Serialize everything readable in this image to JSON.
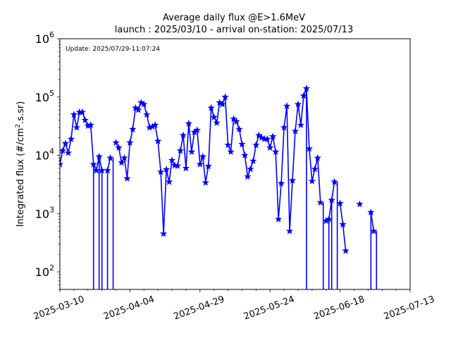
{
  "chart_data": {
    "type": "line",
    "title_line1": "Average daily flux @E>1.6MeV",
    "title_line2": "launch : 2025/03/10 - arrival on-station: 2025/07/13",
    "annotation": "Update: 2025/07/29-11:07:24",
    "ylabel_prefix": "Integrated flux (#/cm",
    "ylabel_sup": "2",
    "ylabel_suffix": ".s.sr)",
    "xlabel": "",
    "yscale": "log",
    "ylim": [
      50,
      1000000
    ],
    "xlim": [
      "2025-03-10",
      "2025-07-13"
    ],
    "x_tick_labels": [
      "2025-03-10",
      "2025-04-04",
      "2025-04-29",
      "2025-05-24",
      "2025-06-18",
      "2025-07-13"
    ],
    "y_tick_labels": [
      {
        "value": 100,
        "base": "10",
        "exp": "2"
      },
      {
        "value": 1000,
        "base": "10",
        "exp": "3"
      },
      {
        "value": 10000,
        "base": "10",
        "exp": "4"
      },
      {
        "value": 100000,
        "base": "10",
        "exp": "5"
      },
      {
        "value": 1000000,
        "base": "10",
        "exp": "6"
      }
    ],
    "grid": false,
    "series": [
      {
        "color": "#0000ff",
        "marker": "star",
        "x": [
          "2025-03-10",
          "2025-03-11",
          "2025-03-12",
          "2025-03-13",
          "2025-03-14",
          "2025-03-15",
          "2025-03-16",
          "2025-03-17",
          "2025-03-18",
          "2025-03-19",
          "2025-03-20",
          "2025-03-21",
          "2025-03-22",
          "2025-03-23",
          "2025-03-24",
          "2025-03-25",
          "2025-03-26",
          "2025-03-27",
          "2025-03-28",
          "2025-03-29",
          "2025-03-30",
          "2025-03-31",
          "2025-04-01",
          "2025-04-02",
          "2025-04-03",
          "2025-04-04",
          "2025-04-05",
          "2025-04-06",
          "2025-04-07",
          "2025-04-08",
          "2025-04-09",
          "2025-04-10",
          "2025-04-11",
          "2025-04-12",
          "2025-04-13",
          "2025-04-14",
          "2025-04-15",
          "2025-04-16",
          "2025-04-17",
          "2025-04-18",
          "2025-04-19",
          "2025-04-20",
          "2025-04-21",
          "2025-04-22",
          "2025-04-23",
          "2025-04-24",
          "2025-04-25",
          "2025-04-26",
          "2025-04-27",
          "2025-04-28",
          "2025-04-29",
          "2025-04-30",
          "2025-05-01",
          "2025-05-02",
          "2025-05-03",
          "2025-05-04",
          "2025-05-05",
          "2025-05-06",
          "2025-05-07",
          "2025-05-08",
          "2025-05-09",
          "2025-05-10",
          "2025-05-11",
          "2025-05-12",
          "2025-05-13",
          "2025-05-14",
          "2025-05-15",
          "2025-05-16",
          "2025-05-17",
          "2025-05-18",
          "2025-05-19",
          "2025-05-20",
          "2025-05-21",
          "2025-05-22",
          "2025-05-23",
          "2025-05-24",
          "2025-05-25",
          "2025-05-26",
          "2025-05-27",
          "2025-05-28",
          "2025-05-29",
          "2025-05-30",
          "2025-05-31",
          "2025-06-01",
          "2025-06-02",
          "2025-06-03",
          "2025-06-04",
          "2025-06-05",
          "2025-06-06",
          "2025-06-07",
          "2025-06-08",
          "2025-06-09",
          "2025-06-10",
          "2025-06-11",
          "2025-06-12",
          "2025-06-13",
          "2025-06-14",
          "2025-06-15",
          "2025-06-16",
          "2025-06-17",
          "2025-06-18",
          "2025-06-19",
          "2025-06-20",
          "2025-06-21",
          "2025-06-22",
          "2025-06-23",
          "2025-06-24",
          "2025-06-25",
          "2025-06-26",
          "2025-06-27",
          "2025-06-28",
          "2025-06-29",
          "2025-06-30",
          "2025-07-01",
          "2025-07-02",
          "2025-07-03",
          "2025-07-04",
          "2025-07-05",
          "2025-07-06",
          "2025-07-07",
          "2025-07-08",
          "2025-07-09",
          "2025-07-10",
          "2025-07-11",
          "2025-07-12",
          "2025-07-13"
        ],
        "y": [
          7000,
          12000,
          16000,
          11000,
          19000,
          50000,
          30000,
          55000,
          55000,
          40000,
          32000,
          33000,
          7000,
          5500,
          9500,
          5500,
          null,
          5500,
          9000,
          null,
          16500,
          13500,
          7500,
          9000,
          4000,
          16500,
          28000,
          65000,
          60000,
          80000,
          75000,
          50000,
          30000,
          31000,
          33000,
          17500,
          5200,
          450,
          5700,
          3500,
          8200,
          6700,
          6600,
          12000,
          22000,
          6000,
          35000,
          11500,
          25000,
          27000,
          7000,
          9500,
          3400,
          6500,
          65000,
          45000,
          36000,
          80000,
          75000,
          100000,
          15000,
          11500,
          42000,
          38000,
          28000,
          15500,
          10000,
          4300,
          5800,
          8000,
          15000,
          22000,
          20000,
          19000,
          19000,
          13500,
          21000,
          11500,
          800,
          3300,
          30000,
          70000,
          500,
          3700,
          26000,
          75000,
          33000,
          105000,
          140000,
          13000,
          3600,
          5800,
          9000,
          1550,
          null,
          750,
          800,
          1700,
          3500,
          null,
          1500,
          650,
          230,
          null,
          null,
          null,
          null,
          1450,
          null,
          null,
          null,
          1050,
          500,
          null,
          null,
          null,
          null,
          null,
          null,
          null,
          null,
          null,
          null,
          null,
          null,
          null
        ],
        "drops_to_floor": [
          "2025-03-22",
          "2025-03-24",
          "2025-03-25",
          "2025-03-27",
          "2025-03-29",
          "2025-06-06",
          "2025-06-12",
          "2025-06-14",
          "2025-06-15",
          "2025-06-17",
          "2025-06-23",
          "2025-06-29",
          "2025-07-01"
        ]
      }
    ]
  }
}
